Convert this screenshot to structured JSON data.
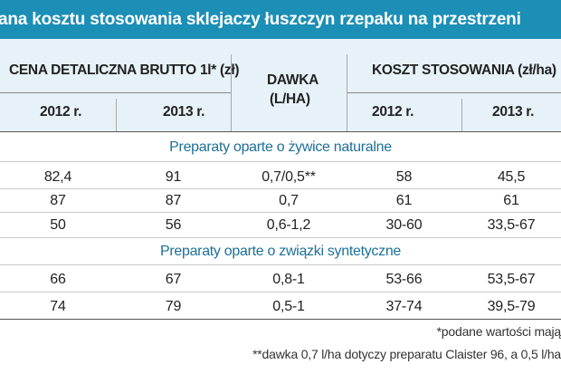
{
  "title": "ana kosztu stosowania sklejaczy łuszczyn rzepaku na przestrzeni",
  "headers": {
    "price_group": "CENA DETALICZNA BRUTTO 1l* (zł)",
    "dose_line1": "DAWKA",
    "dose_line2": "(L/HA)",
    "cost_group": "KOSZT STOSOWANIA (zł/ha)",
    "year_2012_a": "2012 r.",
    "year_2013_a": "2013 r.",
    "year_2012_b": "2012 r.",
    "year_2013_b": "2013 r."
  },
  "sections": [
    {
      "label": "Preparaty oparte o żywice naturalne",
      "rows": [
        [
          "82,4",
          "91",
          "0,7/0,5**",
          "58",
          "45,5"
        ],
        [
          "87",
          "87",
          "0,7",
          "61",
          "61"
        ],
        [
          "50",
          "56",
          "0,6-1,2",
          "30-60",
          "33,5-67"
        ]
      ]
    },
    {
      "label": "Preparaty oparte o związki syntetyczne",
      "rows": [
        [
          "66",
          "67",
          "0,8-1",
          "53-66",
          "53,5-67"
        ],
        [
          "74",
          "79",
          "0,5-1",
          "37-74",
          "39,5-79"
        ]
      ]
    }
  ],
  "notes": {
    "note1": "*podane wartości mają",
    "note2": "**dawka 0,7 l/ha dotyczy preparatu Claister 96, a 0,5 l/ha"
  }
}
